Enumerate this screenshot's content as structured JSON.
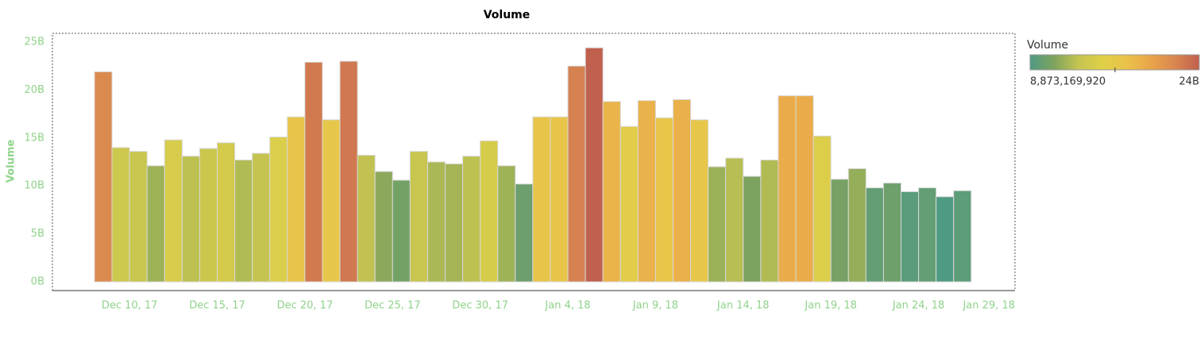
{
  "chart_data": {
    "type": "bar",
    "title": "Volume",
    "y_label": "Volume",
    "x": [
      "2017-12-08",
      "2017-12-09",
      "2017-12-10",
      "2017-12-11",
      "2017-12-12",
      "2017-12-13",
      "2017-12-14",
      "2017-12-15",
      "2017-12-16",
      "2017-12-17",
      "2017-12-18",
      "2017-12-19",
      "2017-12-20",
      "2017-12-21",
      "2017-12-22",
      "2017-12-23",
      "2017-12-24",
      "2017-12-25",
      "2017-12-26",
      "2017-12-27",
      "2017-12-28",
      "2017-12-29",
      "2017-12-30",
      "2017-12-31",
      "2018-01-01",
      "2018-01-02",
      "2018-01-03",
      "2018-01-04",
      "2018-01-05",
      "2018-01-06",
      "2018-01-07",
      "2018-01-08",
      "2018-01-09",
      "2018-01-10",
      "2018-01-11",
      "2018-01-12",
      "2018-01-13",
      "2018-01-14",
      "2018-01-15",
      "2018-01-16",
      "2018-01-17",
      "2018-01-18",
      "2018-01-19",
      "2018-01-20",
      "2018-01-21",
      "2018-01-22",
      "2018-01-23",
      "2018-01-24",
      "2018-01-25",
      "2018-01-26"
    ],
    "values": [
      21900000000,
      14000000000,
      13600000000,
      12100000000,
      14800000000,
      13100000000,
      13900000000,
      14500000000,
      12700000000,
      13400000000,
      15100000000,
      17200000000,
      22900000000,
      16900000000,
      23000000000,
      13200000000,
      11500000000,
      10600000000,
      13600000000,
      12500000000,
      12300000000,
      13100000000,
      14700000000,
      12100000000,
      10200000000,
      17200000000,
      17200000000,
      22500000000,
      24400000000,
      18800000000,
      16200000000,
      18900000000,
      17100000000,
      19000000000,
      16900000000,
      12000000000,
      12900000000,
      11000000000,
      12700000000,
      19400000000,
      19400000000,
      15200000000,
      10700000000,
      11800000000,
      9800000000,
      10300000000,
      9400000000,
      9800000000,
      8873169920,
      9500000000
    ],
    "xlim": [
      "2017-12-05T14:24",
      "2018-01-29T12:00"
    ],
    "xticks": [
      {
        "value": "2017-12-10",
        "label": "Dec 10, 17"
      },
      {
        "value": "2017-12-15",
        "label": "Dec 15, 17"
      },
      {
        "value": "2017-12-20",
        "label": "Dec 20, 17"
      },
      {
        "value": "2017-12-25",
        "label": "Dec 25, 17"
      },
      {
        "value": "2017-12-30",
        "label": "Dec 30, 17"
      },
      {
        "value": "2018-01-04",
        "label": "Jan 4, 18"
      },
      {
        "value": "2018-01-09",
        "label": "Jan 9, 18"
      },
      {
        "value": "2018-01-14",
        "label": "Jan 14, 18"
      },
      {
        "value": "2018-01-19",
        "label": "Jan 19, 18"
      },
      {
        "value": "2018-01-24",
        "label": "Jan 24, 18"
      },
      {
        "value": "2018-01-29",
        "label": "Jan 29, 18"
      }
    ],
    "ylim": [
      -910000000,
      25910000000
    ],
    "yticks": [
      {
        "value": 0,
        "label": "0B"
      },
      {
        "value": 5000000000,
        "label": "5B"
      },
      {
        "value": 10000000000,
        "label": "10B"
      },
      {
        "value": 15000000000,
        "label": "15B"
      },
      {
        "value": 20000000000,
        "label": "20B"
      },
      {
        "value": 25000000000,
        "label": "25B"
      }
    ],
    "color_scale": {
      "title": "Volume",
      "min": {
        "value": 8873169920,
        "label": "8,873,169,920"
      },
      "max": {
        "value": 24400000000,
        "label": "24B"
      },
      "colors": [
        "#4f9a84",
        "#7fa35e",
        "#c4c450",
        "#e0d048",
        "#ebc24a",
        "#e9a44a",
        "#d98650",
        "#c0604e"
      ]
    }
  }
}
